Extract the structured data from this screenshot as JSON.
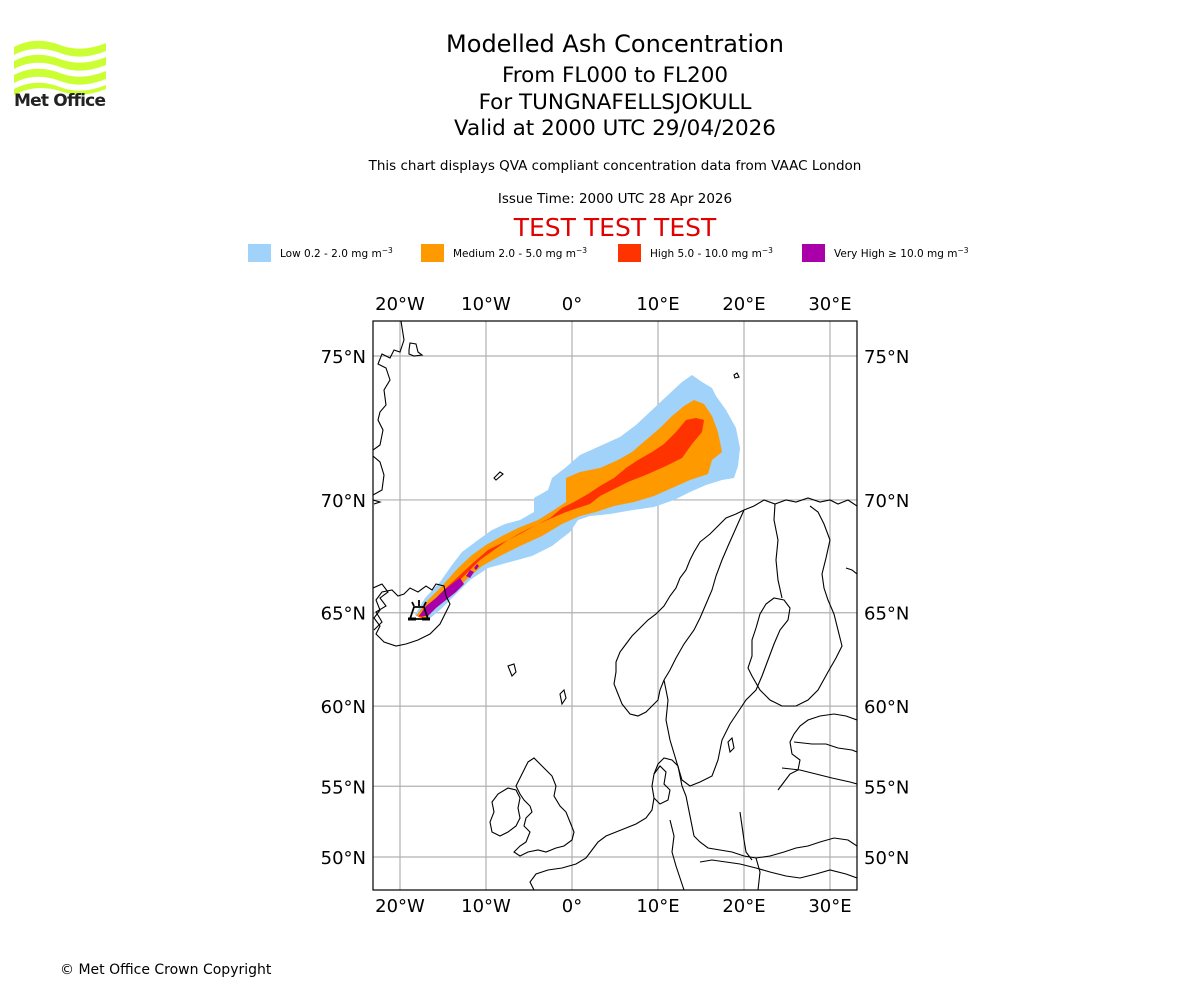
{
  "logo": {
    "text": "Met Office",
    "icon": "met-office-wave-logo-icon",
    "color": "#ccff33"
  },
  "header": {
    "title": "Modelled Ash Concentration",
    "levels": "From FL000 to FL200",
    "volcano": "For TUNGNAFELLSJOKULL",
    "valid": "Valid at 2000 UTC 29/04/2026",
    "description": "This chart displays QVA compliant concentration data from VAAC London",
    "issue_time": "Issue Time: 2000 UTC 28 Apr 2026",
    "test_banner": "TEST TEST TEST",
    "test_color": "#e00000"
  },
  "legend": [
    {
      "label": "Low 0.2 - 2.0 mg m",
      "unit_exp": "−3",
      "color": "#a0d2fa"
    },
    {
      "label": "Medium 2.0 - 5.0 mg m",
      "unit_exp": "−3",
      "color": "#ff9900"
    },
    {
      "label": "High 5.0 - 10.0 mg m",
      "unit_exp": "−3",
      "color": "#ff3300"
    },
    {
      "label": "Very High  ≥  10.0 mg m",
      "unit_exp": "−3",
      "color": "#aa00aa"
    }
  ],
  "chart_data": {
    "type": "map",
    "projection": "mercator",
    "extent": {
      "lon": [
        -23,
        33
      ],
      "lat": [
        48,
        76.5
      ]
    },
    "grid": true,
    "lon_ticks": [
      "20°W",
      "10°W",
      "0°",
      "10°E",
      "20°E",
      "30°E"
    ],
    "lon_tick_values": [
      -20,
      -10,
      0,
      10,
      20,
      30
    ],
    "lat_ticks": [
      "75°N",
      "70°N",
      "65°N",
      "60°N",
      "55°N",
      "50°N"
    ],
    "lat_tick_values": [
      75,
      70,
      65,
      60,
      55,
      50
    ],
    "volcano": {
      "name": "TUNGNAFELLSJOKULL",
      "lon": -17.9,
      "lat": 64.7,
      "symbol": "volcano-icon"
    },
    "plume_direction": "north-east from Iceland towards the Norwegian Sea / Barents Sea",
    "plume_extent": {
      "lon": [
        -18,
        19
      ],
      "lat": [
        64.5,
        74.5
      ]
    }
  },
  "footer": {
    "copyright": "© Met Office Crown Copyright"
  }
}
